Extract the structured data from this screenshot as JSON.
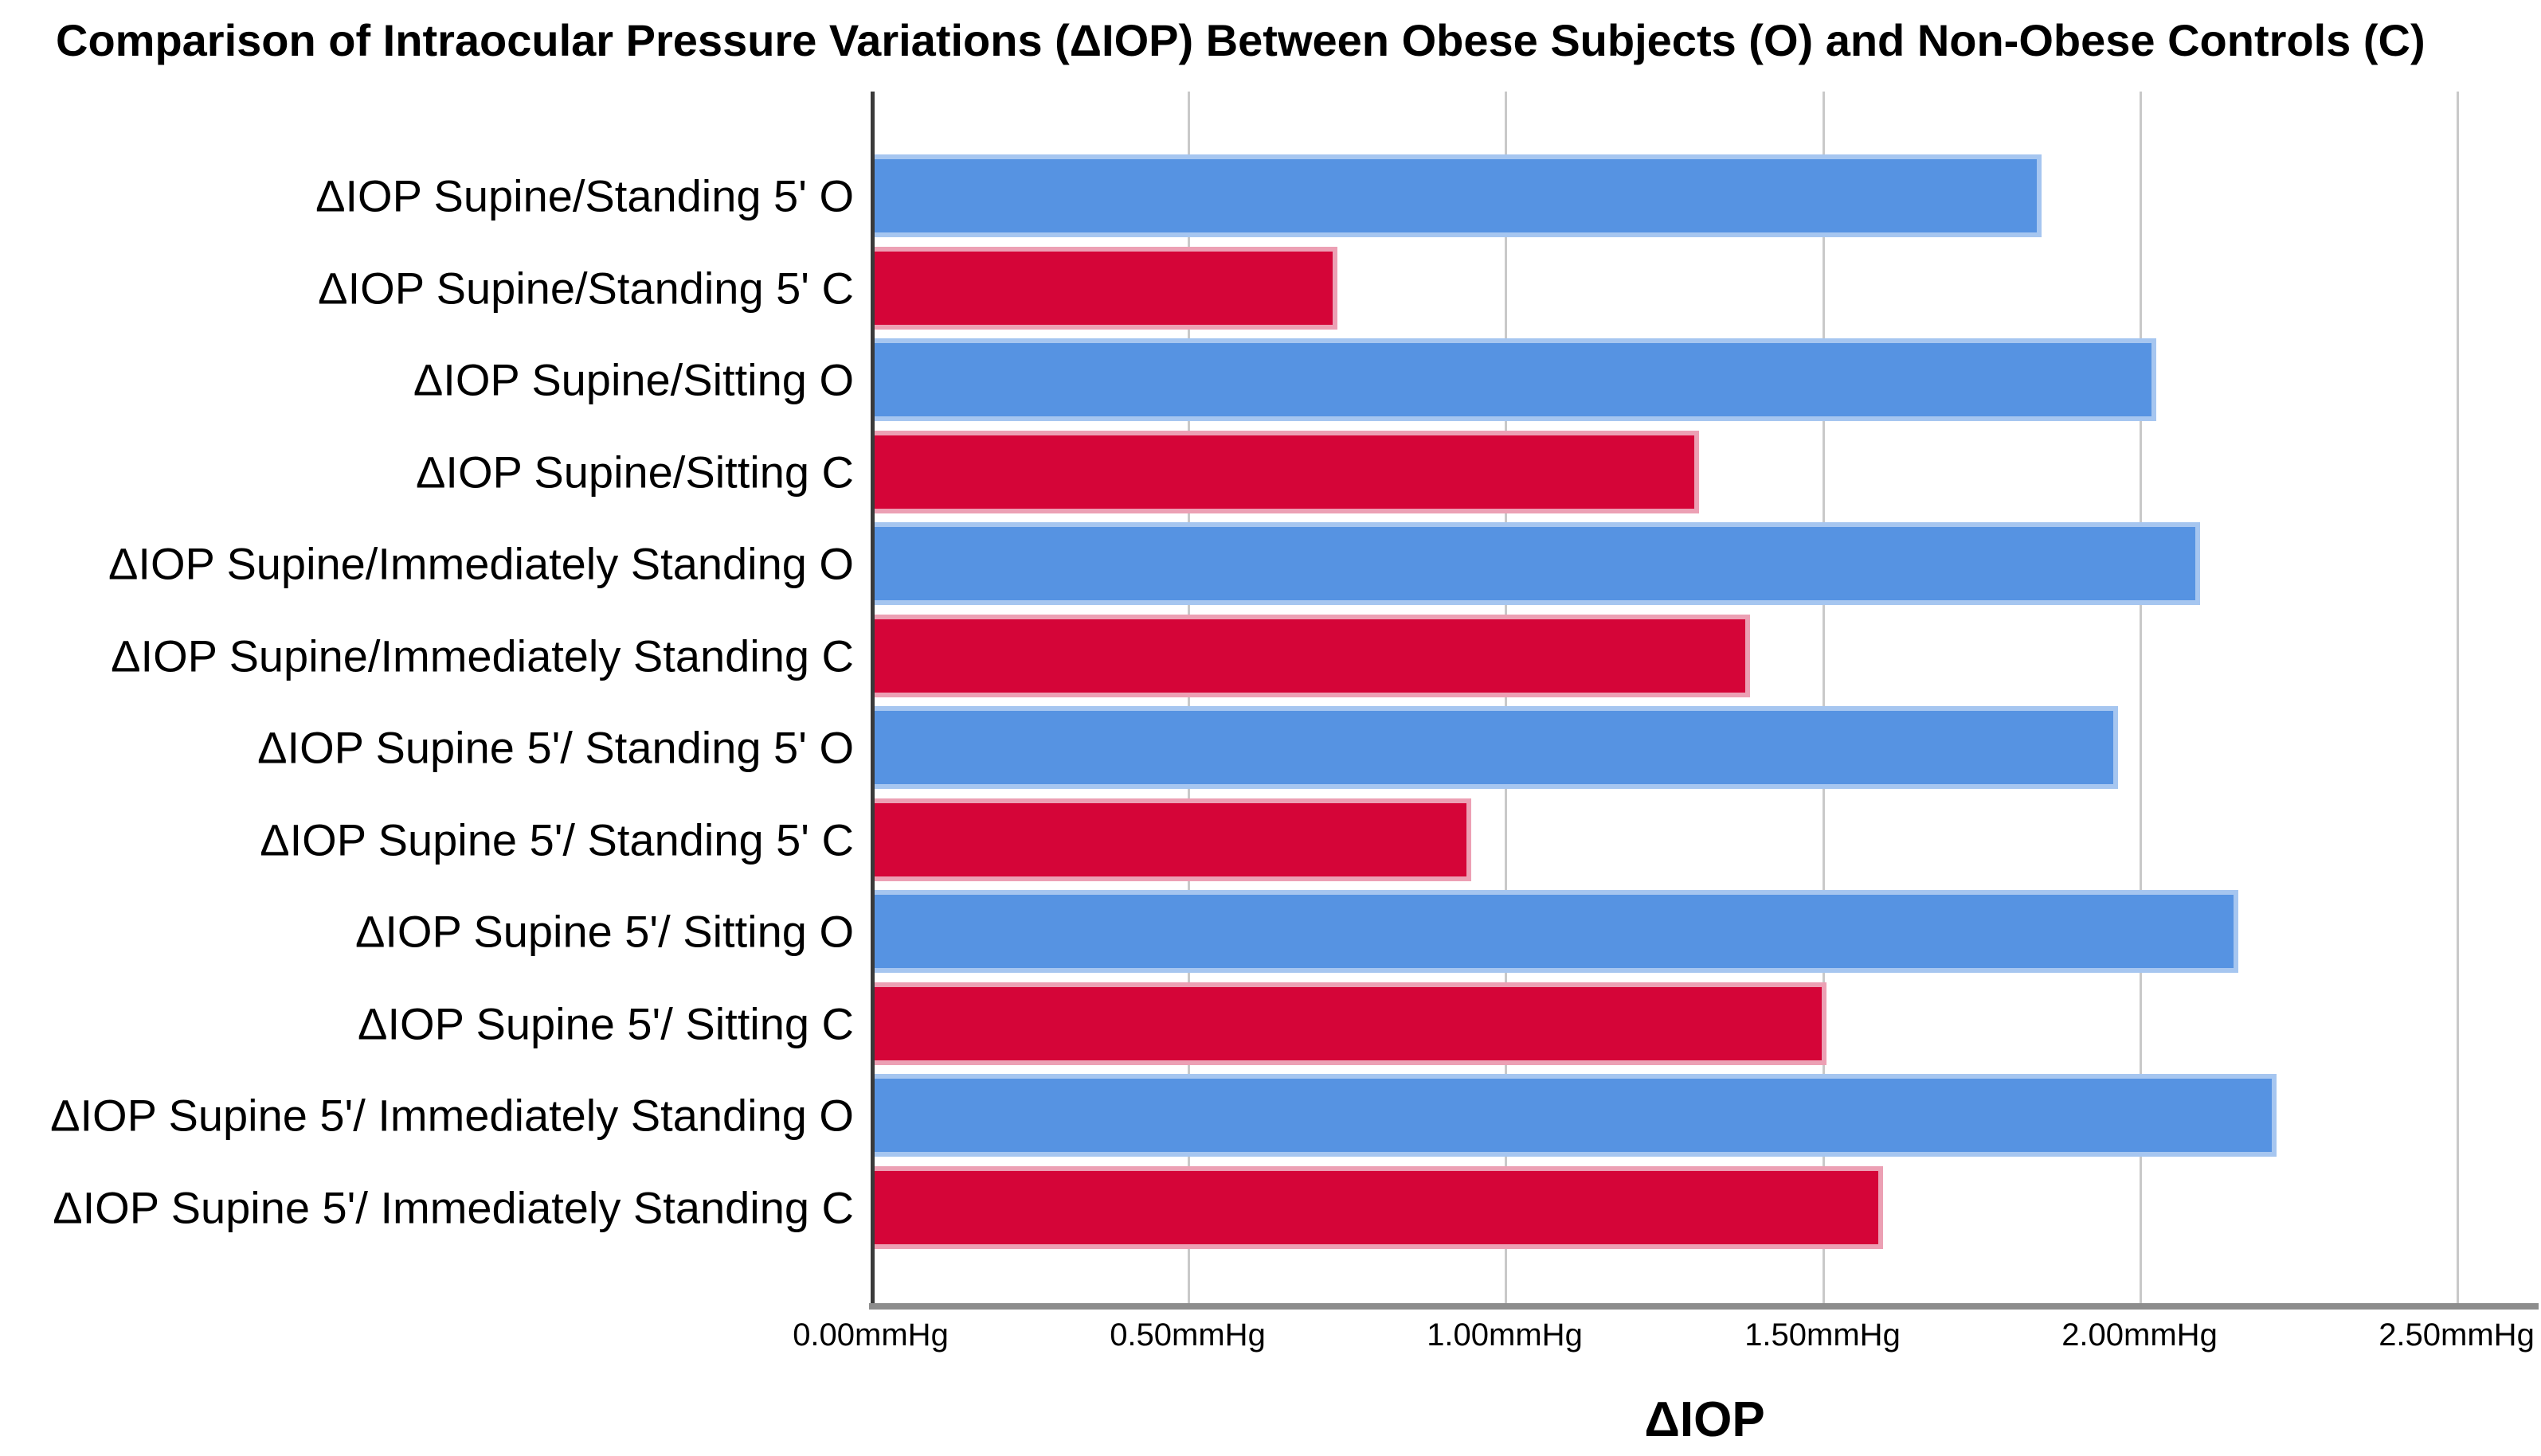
{
  "chart_data": {
    "type": "bar",
    "orientation": "horizontal",
    "title": "Comparison of Intraocular Pressure Variations (ΔIOP) Between Obese Subjects (O) and Non-Obese Controls (C)",
    "xlabel": "ΔIOP",
    "xlim": [
      0,
      2.5
    ],
    "x_tick_labels": [
      "0.00mmHg",
      "0.50mmHg",
      "1.00mmHg",
      "1.50mmHg",
      "2.00mmHg",
      "2.50mmHg"
    ],
    "x_tick_values": [
      0.0,
      0.5,
      1.0,
      1.5,
      2.0,
      2.5
    ],
    "grid": "vertical-gridlines-on",
    "legend": "none",
    "groups": {
      "O": "Obese Subjects",
      "C": "Non-Obese Controls"
    },
    "colors": {
      "obese_fill": "#5693E2",
      "obese_edge": "#A6C6F0",
      "control_fill": "#D50538",
      "control_edge": "#ECA0B4",
      "gridline": "#C9C9C9",
      "y_axis_line": "#3A3A3A",
      "x_axis_line": "#8D8D8D",
      "text": "#000000"
    },
    "unit": "mmHg",
    "bars": [
      {
        "label": "ΔIOP Supine/Standing 5' O",
        "group": "O",
        "value": 1.84
      },
      {
        "label": "ΔIOP Supine/Standing 5' C",
        "group": "C",
        "value": 0.73
      },
      {
        "label": "ΔIOP Supine/Sitting O",
        "group": "O",
        "value": 2.02
      },
      {
        "label": "ΔIOP Supine/Sitting C",
        "group": "C",
        "value": 1.3
      },
      {
        "label": "ΔIOP Supine/Immediately Standing O",
        "group": "O",
        "value": 2.09
      },
      {
        "label": "ΔIOP Supine/Immediately Standing C",
        "group": "C",
        "value": 1.38
      },
      {
        "label": "ΔIOP Supine 5'/ Standing 5' O",
        "group": "O",
        "value": 1.96
      },
      {
        "label": "ΔIOP Supine 5'/ Standing 5' C",
        "group": "C",
        "value": 0.94
      },
      {
        "label": "ΔIOP Supine 5'/ Sitting O",
        "group": "O",
        "value": 2.15
      },
      {
        "label": "ΔIOP Supine 5'/ Sitting C",
        "group": "C",
        "value": 1.5
      },
      {
        "label": "ΔIOP Supine 5'/ Immediately Standing O",
        "group": "O",
        "value": 2.21
      },
      {
        "label": "ΔIOP Supine 5'/ Immediately Standing C",
        "group": "C",
        "value": 1.59
      }
    ]
  }
}
